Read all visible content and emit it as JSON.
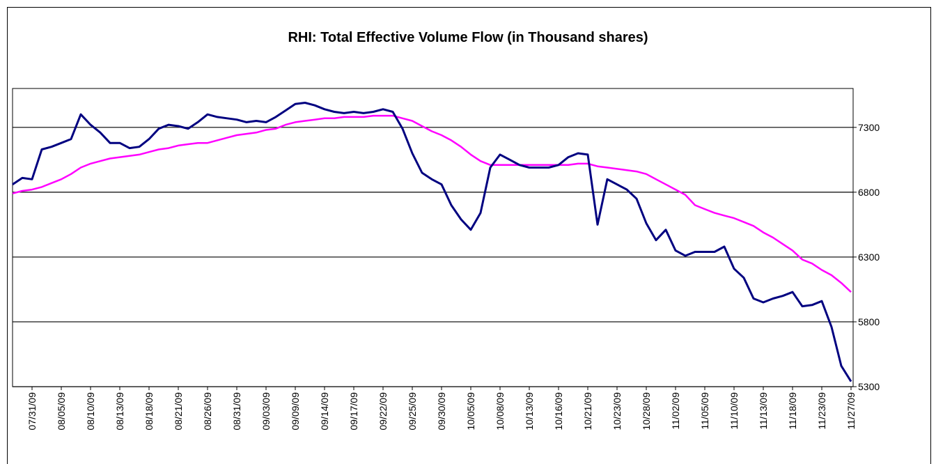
{
  "chart_data": {
    "type": "line",
    "title": "RHI: Total Effective Volume Flow (in Thousand shares)",
    "categories": [
      null,
      null,
      "07/31/09",
      null,
      null,
      "08/05/09",
      null,
      null,
      "08/10/09",
      null,
      null,
      "08/13/09",
      null,
      null,
      "08/18/09",
      null,
      null,
      "08/21/09",
      null,
      null,
      "08/26/09",
      null,
      null,
      "08/31/09",
      null,
      null,
      "09/03/09",
      null,
      null,
      "09/09/09",
      null,
      null,
      "09/14/09",
      null,
      null,
      "09/17/09",
      null,
      null,
      "09/22/09",
      null,
      null,
      "09/25/09",
      null,
      null,
      "09/30/09",
      null,
      null,
      "10/05/09",
      null,
      null,
      "10/08/09",
      null,
      null,
      "10/13/09",
      null,
      null,
      "10/16/09",
      null,
      null,
      "10/21/09",
      null,
      null,
      "10/23/09",
      null,
      null,
      "10/28/09",
      null,
      null,
      "11/02/09",
      null,
      null,
      "11/05/09",
      null,
      null,
      "11/10/09",
      null,
      null,
      "11/13/09",
      null,
      null,
      "11/18/09",
      null,
      null,
      "11/23/09",
      null,
      null,
      "11/27/09"
    ],
    "series": [
      {
        "color": "#000080",
        "values": [
          6860,
          6910,
          6900,
          7130,
          7150,
          7180,
          7210,
          7400,
          7320,
          7260,
          7180,
          7180,
          7140,
          7150,
          7210,
          7290,
          7320,
          7310,
          7290,
          7340,
          7400,
          7380,
          7370,
          7360,
          7340,
          7350,
          7340,
          7380,
          7430,
          7480,
          7490,
          7470,
          7440,
          7420,
          7410,
          7420,
          7410,
          7420,
          7440,
          7420,
          7290,
          7100,
          6950,
          6900,
          6860,
          6700,
          6590,
          6510,
          6640,
          6990,
          7090,
          7050,
          7010,
          6990,
          6990,
          6990,
          7010,
          7070,
          7100,
          7090,
          6550,
          6900,
          6860,
          6820,
          6750,
          6560,
          6430,
          6510,
          6350,
          6310,
          6340,
          6340,
          6340,
          6380,
          6210,
          6140,
          5980,
          5950,
          5980,
          6000,
          6030,
          5920,
          5930,
          5960,
          5760,
          5460,
          5340
        ]
      },
      {
        "color": "#ff00ff",
        "values": [
          6790,
          6810,
          6820,
          6840,
          6870,
          6900,
          6940,
          6990,
          7020,
          7040,
          7060,
          7070,
          7080,
          7090,
          7110,
          7130,
          7140,
          7160,
          7170,
          7180,
          7180,
          7200,
          7220,
          7240,
          7250,
          7260,
          7280,
          7290,
          7320,
          7340,
          7350,
          7360,
          7370,
          7370,
          7380,
          7380,
          7380,
          7390,
          7390,
          7390,
          7370,
          7350,
          7310,
          7270,
          7240,
          7200,
          7150,
          7090,
          7040,
          7010,
          7010,
          7010,
          7010,
          7010,
          7010,
          7010,
          7010,
          7010,
          7020,
          7020,
          7000,
          6990,
          6980,
          6970,
          6960,
          6940,
          6900,
          6860,
          6820,
          6780,
          6700,
          6670,
          6640,
          6620,
          6600,
          6570,
          6540,
          6490,
          6450,
          6400,
          6350,
          6280,
          6250,
          6200,
          6160,
          6100,
          6030
        ]
      }
    ],
    "ylim": [
      5300,
      7600
    ],
    "yticks": [
      5300,
      5800,
      6300,
      6800,
      7300
    ],
    "grid": true
  }
}
